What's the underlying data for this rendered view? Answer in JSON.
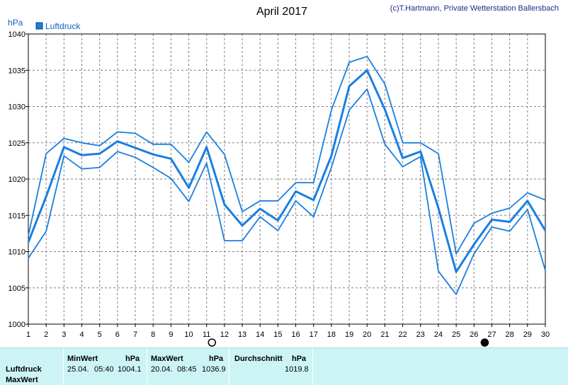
{
  "chart_data": {
    "type": "line",
    "title": "April 2017",
    "credit": "(c)T.Hartmann, Private Wetterstation Ballersbach",
    "ylabel": "hPa",
    "ylim": [
      1000,
      1040
    ],
    "yticks": [
      1000,
      1005,
      1010,
      1015,
      1020,
      1025,
      1030,
      1035,
      1040
    ],
    "x": [
      1,
      2,
      3,
      4,
      5,
      6,
      7,
      8,
      9,
      10,
      11,
      12,
      13,
      14,
      15,
      16,
      17,
      18,
      19,
      20,
      21,
      22,
      23,
      24,
      25,
      26,
      27,
      28,
      29,
      30
    ],
    "grid": true,
    "legend": {
      "position": "top-left",
      "entries": [
        "Luftdruck"
      ]
    },
    "markers": [
      {
        "symbol": "full-moon",
        "x": 11.3
      },
      {
        "symbol": "new-moon",
        "x": 26.6
      }
    ],
    "series": [
      {
        "name": "Luftdruck",
        "role": "max",
        "values": [
          1012.2,
          1023.5,
          1025.6,
          1025.0,
          1024.6,
          1026.5,
          1026.3,
          1024.8,
          1024.8,
          1022.3,
          1026.5,
          1023.4,
          1015.5,
          1017.0,
          1017.0,
          1019.5,
          1019.5,
          1029.5,
          1036.1,
          1036.9,
          1033.1,
          1025.0,
          1025.0,
          1023.5,
          1009.7,
          1013.9,
          1015.3,
          1016.0,
          1018.1,
          1017.1
        ]
      },
      {
        "name": "Luftdruck",
        "role": "mean",
        "values": [
          1011.3,
          1017.6,
          1024.4,
          1023.3,
          1023.5,
          1025.2,
          1024.3,
          1023.4,
          1022.8,
          1018.8,
          1024.4,
          1016.5,
          1013.6,
          1015.9,
          1014.3,
          1018.3,
          1017.1,
          1023.2,
          1032.8,
          1035.0,
          1029.6,
          1022.9,
          1023.8,
          1016.0,
          1007.2,
          1011.0,
          1014.4,
          1014.1,
          1017.0,
          1012.9
        ]
      },
      {
        "name": "Luftdruck",
        "role": "min",
        "values": [
          1009.1,
          1012.8,
          1023.2,
          1021.4,
          1021.6,
          1023.8,
          1023.0,
          1021.6,
          1020.1,
          1016.9,
          1022.2,
          1011.5,
          1011.5,
          1014.8,
          1012.9,
          1017.0,
          1014.8,
          1021.6,
          1029.5,
          1032.4,
          1024.8,
          1021.7,
          1023.1,
          1007.3,
          1004.1,
          1009.7,
          1013.4,
          1012.8,
          1015.8,
          1007.4
        ]
      }
    ]
  },
  "summary": {
    "row_label_1": "Luftdruck",
    "row_label_2": "MaxWert",
    "min_header": "MinWert",
    "min_unit": "hPa",
    "min_date": "25.04.",
    "min_time": "05:40",
    "min_value": "1004.1",
    "max_header": "MaxWert",
    "max_unit": "hPa",
    "max_date": "20.04.",
    "max_time": "08:45",
    "max_value": "1036.9",
    "avg_header": "Durchschnitt",
    "avg_unit": "hPa",
    "avg_value": "1019.8"
  },
  "colors": {
    "series": "#1a7fe0",
    "legend_box": "#1a7fe0",
    "grid": "#808080",
    "summary_bg": "#cdf4f4"
  }
}
